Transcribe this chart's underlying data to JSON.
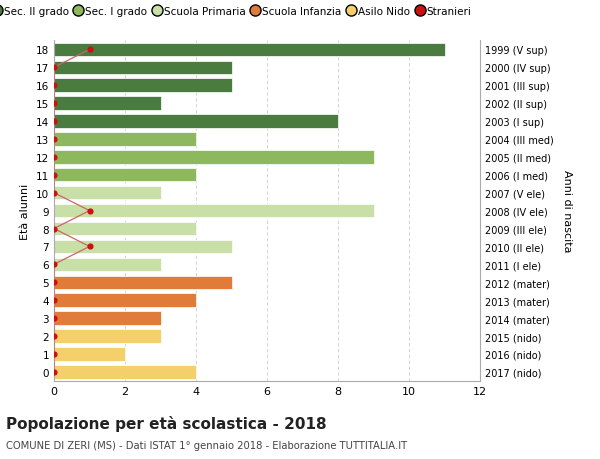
{
  "ages": [
    18,
    17,
    16,
    15,
    14,
    13,
    12,
    11,
    10,
    9,
    8,
    7,
    6,
    5,
    4,
    3,
    2,
    1,
    0
  ],
  "years": [
    "1999 (V sup)",
    "2000 (IV sup)",
    "2001 (III sup)",
    "2002 (II sup)",
    "2003 (I sup)",
    "2004 (III med)",
    "2005 (II med)",
    "2006 (I med)",
    "2007 (V ele)",
    "2008 (IV ele)",
    "2009 (III ele)",
    "2010 (II ele)",
    "2011 (I ele)",
    "2012 (mater)",
    "2013 (mater)",
    "2014 (mater)",
    "2015 (nido)",
    "2016 (nido)",
    "2017 (nido)"
  ],
  "bar_values": [
    11,
    5,
    5,
    3,
    8,
    4,
    9,
    4,
    3,
    9,
    4,
    5,
    3,
    5,
    4,
    3,
    3,
    2,
    4
  ],
  "bar_colors": [
    "#4a7c3f",
    "#4a7c3f",
    "#4a7c3f",
    "#4a7c3f",
    "#4a7c3f",
    "#8db85e",
    "#8db85e",
    "#8db85e",
    "#c8dfa8",
    "#c8dfa8",
    "#c8dfa8",
    "#c8dfa8",
    "#c8dfa8",
    "#e07b39",
    "#e07b39",
    "#e07b39",
    "#f5d06a",
    "#f5d06a",
    "#f5d06a"
  ],
  "stranieri_ages": [
    18,
    17,
    16,
    15,
    14,
    13,
    12,
    11,
    10,
    9,
    8,
    7,
    6,
    5,
    4,
    3,
    2,
    1,
    0
  ],
  "stranieri_x_pos": [
    1,
    0,
    0,
    0,
    0,
    0,
    0,
    0,
    0,
    1,
    0,
    1,
    0,
    0,
    0,
    0,
    0,
    0,
    0
  ],
  "title": "Popolazione per età scolastica - 2018",
  "subtitle": "COMUNE DI ZERI (MS) - Dati ISTAT 1° gennaio 2018 - Elaborazione TUTTITALIA.IT",
  "ylabel": "Età alunni",
  "ylabel2": "Anni di nascita",
  "xlim": [
    0,
    12
  ],
  "xticks": [
    0,
    2,
    4,
    6,
    8,
    10,
    12
  ],
  "legend_labels": [
    "Sec. II grado",
    "Sec. I grado",
    "Scuola Primaria",
    "Scuola Infanzia",
    "Asilo Nido",
    "Stranieri"
  ],
  "legend_colors": [
    "#4a7c3f",
    "#8db85e",
    "#c8dfa8",
    "#e07b39",
    "#f5d06a",
    "#cc1111"
  ],
  "bg_color": "#ffffff",
  "grid_color": "#cccccc",
  "bar_height": 0.75,
  "stranieri_color": "#cc1111",
  "stranieri_linecolor": "#cc6666"
}
